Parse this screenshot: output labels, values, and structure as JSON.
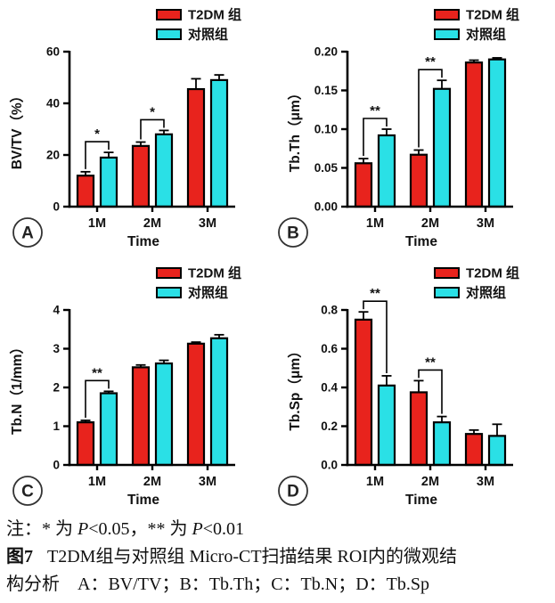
{
  "figure": {
    "caption_note": {
      "prefix": "注：* 为 ",
      "p1": "P",
      "mid": "<0.05，** 为 ",
      "p2": "P",
      "end": "<0.01"
    },
    "caption_fig": {
      "label": "图7",
      "line1": "T2DM组与对照组 Micro-CT扫描结果 ROI内的微观结",
      "line2": "构分析　A：BV/TV；B：Tb.Th；C：Tb.N；D：Tb.Sp"
    }
  },
  "colors": {
    "t2dm_red": "#e8231d",
    "control_cyan": "#2ae0e6",
    "axis_black": "#000000"
  },
  "chart_data": [
    {
      "type": "bar",
      "panel_label": "A",
      "ylabel": "BV/TV（%）",
      "xlabel": "Time",
      "categories": [
        "1M",
        "2M",
        "3M"
      ],
      "ylim": [
        0,
        60
      ],
      "yticks": [
        "0",
        "20",
        "40",
        "60"
      ],
      "grid": false,
      "legend_position": "top-right",
      "series": [
        {
          "name": "T2DM 组",
          "color": "#e8231d",
          "values": [
            12,
            23.5,
            45.5
          ],
          "errors": [
            1.5,
            1.5,
            4
          ]
        },
        {
          "name": "对照组",
          "color": "#2ae0e6",
          "values": [
            19,
            28,
            49
          ],
          "errors": [
            2,
            1.5,
            2
          ]
        }
      ],
      "significance": [
        {
          "category": 0,
          "label": "*"
        },
        {
          "category": 1,
          "label": "*"
        }
      ]
    },
    {
      "type": "bar",
      "panel_label": "B",
      "ylabel": "Tb.Th（μm）",
      "xlabel": "Time",
      "categories": [
        "1M",
        "2M",
        "3M"
      ],
      "ylim": [
        0,
        0.2
      ],
      "yticks": [
        "0.00",
        "0.05",
        "0.10",
        "0.15",
        "0.20"
      ],
      "grid": false,
      "legend_position": "top-right",
      "series": [
        {
          "name": "T2DM 组",
          "color": "#e8231d",
          "values": [
            0.056,
            0.067,
            0.186
          ],
          "errors": [
            0.006,
            0.006,
            0.003
          ]
        },
        {
          "name": "对照组",
          "color": "#2ae0e6",
          "values": [
            0.092,
            0.152,
            0.19
          ],
          "errors": [
            0.008,
            0.011,
            0.002
          ]
        }
      ],
      "significance": [
        {
          "category": 0,
          "label": "**"
        },
        {
          "category": 1,
          "label": "**"
        }
      ]
    },
    {
      "type": "bar",
      "panel_label": "C",
      "ylabel": "Tb.N（1/mm）",
      "xlabel": "Time",
      "categories": [
        "1M",
        "2M",
        "3M"
      ],
      "ylim": [
        0,
        4
      ],
      "yticks": [
        "0",
        "1",
        "2",
        "3",
        "4"
      ],
      "grid": false,
      "legend_position": "top-right",
      "series": [
        {
          "name": "T2DM 组",
          "color": "#e8231d",
          "values": [
            1.1,
            2.52,
            3.13
          ],
          "errors": [
            0.05,
            0.06,
            0.04
          ]
        },
        {
          "name": "对照组",
          "color": "#2ae0e6",
          "values": [
            1.85,
            2.62,
            3.27
          ],
          "errors": [
            0.05,
            0.08,
            0.09
          ]
        }
      ],
      "significance": [
        {
          "category": 0,
          "label": "**"
        }
      ]
    },
    {
      "type": "bar",
      "panel_label": "D",
      "ylabel": "Tb.Sp（μm）",
      "xlabel": "Time",
      "categories": [
        "1M",
        "2M",
        "3M"
      ],
      "ylim": [
        0,
        0.8
      ],
      "yticks": [
        "0.0",
        "0.2",
        "0.4",
        "0.6",
        "0.8"
      ],
      "grid": false,
      "legend_position": "top-right",
      "series": [
        {
          "name": "T2DM 组",
          "color": "#e8231d",
          "values": [
            0.75,
            0.375,
            0.16
          ],
          "errors": [
            0.04,
            0.06,
            0.02
          ]
        },
        {
          "name": "对照组",
          "color": "#2ae0e6",
          "values": [
            0.41,
            0.22,
            0.15
          ],
          "errors": [
            0.05,
            0.03,
            0.06
          ]
        }
      ],
      "significance": [
        {
          "category": 0,
          "label": "**"
        },
        {
          "category": 1,
          "label": "**"
        }
      ]
    }
  ]
}
